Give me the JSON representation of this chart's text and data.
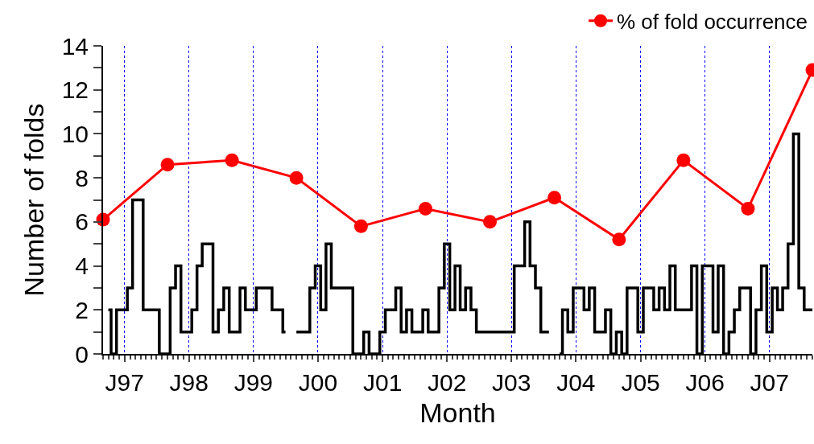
{
  "chart_data": {
    "type": "step",
    "xlabel": "Month",
    "ylabel": "Number of folds",
    "xlim": [
      "1996-09",
      "2007-09"
    ],
    "xticks": [
      {
        "value": "1997-01",
        "label": "J97"
      },
      {
        "value": "1998-01",
        "label": "J98"
      },
      {
        "value": "1999-01",
        "label": "J99"
      },
      {
        "value": "2000-01",
        "label": "J00"
      },
      {
        "value": "2001-01",
        "label": "J01"
      },
      {
        "value": "2002-01",
        "label": "J02"
      },
      {
        "value": "2003-01",
        "label": "J03"
      },
      {
        "value": "2004-01",
        "label": "J04"
      },
      {
        "value": "2005-01",
        "label": "J05"
      },
      {
        "value": "2006-01",
        "label": "J06"
      },
      {
        "value": "2007-01",
        "label": "J07"
      }
    ],
    "ylim": [
      0,
      14
    ],
    "yticks": [
      0,
      {
        "value": 1,
        "label": null
      },
      2,
      {
        "value": 3,
        "label": null
      },
      4,
      {
        "value": 5,
        "label": null
      },
      6,
      {
        "value": 7,
        "label": null
      },
      8,
      {
        "value": 9,
        "label": null
      },
      10,
      {
        "value": 11,
        "label": null
      },
      12,
      {
        "value": 13,
        "label": null
      },
      14
    ],
    "grid": "x",
    "legend": "top right",
    "series": [
      {
        "color": "#000000",
        "marker": "none",
        "x": [
          "1996-10",
          "1996-11",
          "1996-12",
          "1997-01",
          "1997-02",
          "1997-03",
          "1997-04",
          "1997-05",
          "1997-06",
          "1997-07",
          "1997-08",
          "1997-09",
          "1997-10",
          "1997-11",
          "1997-12",
          "1998-01",
          "1998-02",
          "1998-03",
          "1998-04",
          "1998-05",
          "1998-06",
          "1998-07",
          "1998-08",
          "1998-09",
          "1998-10",
          "1998-11",
          "1998-12",
          "1999-01",
          "1999-02",
          "1999-03",
          "1999-04",
          "1999-05",
          "1999-06",
          "1999-07",
          "1999-08",
          "1999-09",
          "1999-10",
          "1999-11",
          "1999-12",
          "2000-01",
          "2000-02",
          "2000-03",
          "2000-04",
          "2000-05",
          "2000-06",
          "2000-07",
          "2000-08",
          "2000-09",
          "2000-10",
          "2000-11",
          "2000-12",
          "2001-01",
          "2001-02",
          "2001-03",
          "2001-04",
          "2001-05",
          "2001-06",
          "2001-07",
          "2001-08",
          "2001-09",
          "2001-10",
          "2001-11",
          "2001-12",
          "2002-01",
          "2002-02",
          "2002-03",
          "2002-04",
          "2002-05",
          "2002-06",
          "2002-07",
          "2002-08",
          "2002-09",
          "2002-10",
          "2002-11",
          "2002-12",
          "2003-01",
          "2003-02",
          "2003-03",
          "2003-04",
          "2003-05",
          "2003-06",
          "2003-07",
          "2003-08",
          "2003-09",
          "2003-10",
          "2003-11",
          "2003-12",
          "2004-01",
          "2004-02",
          "2004-03",
          "2004-04",
          "2004-05",
          "2004-06",
          "2004-07",
          "2004-08",
          "2004-09",
          "2004-10",
          "2004-11",
          "2004-12",
          "2005-01",
          "2005-02",
          "2005-03",
          "2005-04",
          "2005-05",
          "2005-06",
          "2005-07",
          "2005-08",
          "2005-09",
          "2005-10",
          "2005-11",
          "2005-12",
          "2006-01",
          "2006-02",
          "2006-03",
          "2006-04",
          "2006-05",
          "2006-06",
          "2006-07",
          "2006-08",
          "2006-09",
          "2006-10",
          "2006-11",
          "2006-12",
          "2007-01",
          "2007-02",
          "2007-03",
          "2007-04",
          "2007-05",
          "2007-06",
          "2007-07",
          "2007-08",
          "2007-09"
        ],
        "values": [
          2,
          0,
          2,
          2,
          3,
          7,
          7,
          2,
          2,
          2,
          0,
          0,
          3,
          4,
          1,
          1,
          2,
          4,
          5,
          5,
          1,
          2,
          3,
          1,
          1,
          3,
          2,
          2,
          3,
          3,
          3,
          2,
          2,
          1,
          null,
          1,
          1,
          1,
          3,
          4,
          2,
          5,
          3,
          3,
          3,
          3,
          0,
          0,
          1,
          0,
          0,
          1,
          2,
          2,
          3,
          1,
          2,
          1,
          1,
          2,
          1,
          1,
          3,
          5,
          2,
          4,
          2,
          3,
          2,
          1,
          1,
          1,
          1,
          1,
          1,
          1,
          4,
          4,
          6,
          4,
          3,
          1,
          1,
          null,
          0,
          2,
          1,
          3,
          3,
          2,
          3,
          1,
          1,
          2,
          0,
          1,
          0,
          3,
          3,
          1,
          3,
          3,
          2,
          3,
          2,
          4,
          2,
          2,
          2,
          4,
          0,
          4,
          4,
          1,
          4,
          0,
          1,
          2,
          3,
          3,
          0,
          2,
          4,
          1,
          3,
          2,
          3,
          5,
          10,
          3,
          2,
          2
        ]
      },
      {
        "type": "line",
        "name": "% of fold occurrence",
        "color": "#ff0000",
        "marker": "circle",
        "x": [
          "1996-09",
          "1997-09",
          "1998-09",
          "1999-09",
          "2000-09",
          "2001-09",
          "2002-09",
          "2003-09",
          "2004-09",
          "2005-09",
          "2006-09",
          "2007-09"
        ],
        "values": [
          6.1,
          8.6,
          8.8,
          8.0,
          5.8,
          6.6,
          6.0,
          7.1,
          5.2,
          8.8,
          6.6,
          12.9
        ]
      }
    ]
  }
}
